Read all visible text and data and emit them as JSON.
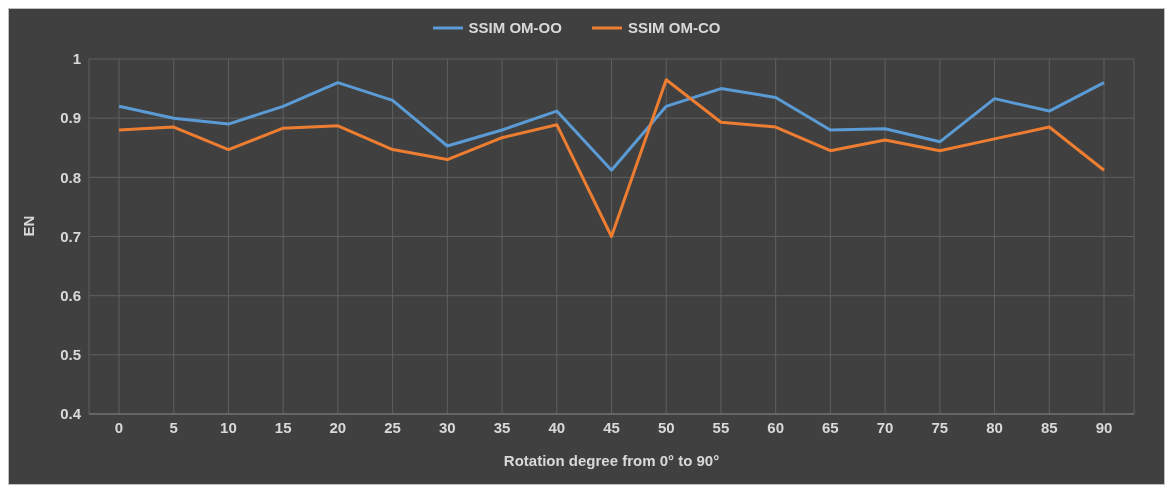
{
  "chart_data": {
    "type": "line",
    "xlabel": "Rotation degree from 0° to 90°",
    "ylabel": "EN",
    "categories": [
      "0",
      "5",
      "10",
      "15",
      "20",
      "25",
      "30",
      "35",
      "40",
      "45",
      "50",
      "55",
      "60",
      "65",
      "70",
      "75",
      "80",
      "85",
      "90"
    ],
    "series": [
      {
        "name": "SSIM OM-OO",
        "color": "#5b9bd5",
        "values": [
          0.92,
          0.9,
          0.89,
          0.92,
          0.96,
          0.93,
          0.853,
          0.88,
          0.912,
          0.812,
          0.92,
          0.95,
          0.935,
          0.88,
          0.882,
          0.86,
          0.933,
          0.912,
          0.96
        ]
      },
      {
        "name": "SSIM OM-CO",
        "color": "#ed7d31",
        "values": [
          0.88,
          0.885,
          0.847,
          0.883,
          0.887,
          0.847,
          0.83,
          0.867,
          0.889,
          0.7,
          0.965,
          0.893,
          0.885,
          0.845,
          0.863,
          0.845,
          0.865,
          0.885,
          0.812
        ]
      }
    ],
    "ylim": [
      0.4,
      1
    ],
    "yticks": [
      0.4,
      0.5,
      0.6,
      0.7,
      0.8,
      0.9,
      1
    ],
    "grid": true,
    "legend": "top",
    "marker": "none",
    "line_style": "solid"
  }
}
